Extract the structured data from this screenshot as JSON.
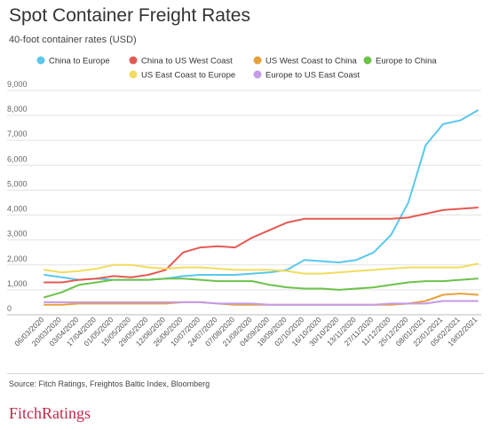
{
  "title": "Spot Container Freight Rates",
  "subtitle": "40-foot container rates (USD)",
  "source": "Source: Fitch Ratings, Freightos Baltic Index, Bloomberg",
  "brand": {
    "part1": "Fitch",
    "part2": "Ratings"
  },
  "colors": {
    "brand": "#c0294a"
  },
  "chart_data": {
    "type": "line",
    "title": "Spot Container Freight Rates",
    "ylabel": "40-foot container rates (USD)",
    "xlabel": "",
    "ylim": [
      0,
      9000
    ],
    "yticks": [
      0,
      1000,
      2000,
      3000,
      4000,
      5000,
      6000,
      7000,
      8000,
      9000
    ],
    "ytick_labels": [
      "0",
      "1,000",
      "2,000",
      "3,000",
      "4,000",
      "5,000",
      "6,000",
      "7,000",
      "8,000",
      "9,000"
    ],
    "grid": true,
    "legend_position": "top",
    "x": [
      "06/03/2020",
      "20/03/2020",
      "03/04/2020",
      "17/04/2020",
      "01/05/2020",
      "15/05/2020",
      "29/05/2020",
      "12/06/2020",
      "26/06/2020",
      "10/07/2020",
      "24/07/2020",
      "07/08/2020",
      "21/08/2020",
      "04/09/2020",
      "18/09/2020",
      "02/10/2020",
      "16/10/2020",
      "30/10/2020",
      "13/11/2020",
      "27/11/2020",
      "11/12/2020",
      "25/12/2020",
      "08/01/2021",
      "22/01/2021",
      "05/02/2021",
      "19/02/2021"
    ],
    "series": [
      {
        "name": "China to Europe",
        "color": "#5bc8ec",
        "values": [
          1600,
          1500,
          1400,
          1450,
          1400,
          1400,
          1400,
          1450,
          1550,
          1600,
          1600,
          1600,
          1650,
          1700,
          1800,
          2200,
          2150,
          2100,
          2200,
          2500,
          3200,
          4500,
          6800,
          7650,
          7800,
          8200
        ]
      },
      {
        "name": "China to US West Coast",
        "color": "#e45a52",
        "values": [
          1300,
          1300,
          1400,
          1450,
          1550,
          1500,
          1600,
          1800,
          2500,
          2700,
          2750,
          2700,
          3100,
          3400,
          3700,
          3850,
          3850,
          3850,
          3850,
          3850,
          3850,
          3900,
          4050,
          4200,
          4250,
          4300
        ]
      },
      {
        "name": "US West Coast to China",
        "color": "#e8a13a",
        "values": [
          400,
          400,
          450,
          450,
          450,
          450,
          450,
          450,
          500,
          500,
          450,
          400,
          400,
          400,
          400,
          400,
          400,
          400,
          400,
          400,
          400,
          450,
          550,
          800,
          850,
          800
        ]
      },
      {
        "name": "Europe to China",
        "color": "#6cc24a",
        "values": [
          700,
          900,
          1200,
          1300,
          1400,
          1400,
          1400,
          1450,
          1450,
          1400,
          1350,
          1350,
          1350,
          1200,
          1100,
          1050,
          1050,
          1000,
          1050,
          1100,
          1200,
          1300,
          1350,
          1350,
          1400,
          1450
        ]
      },
      {
        "name": "US East Coast to Europe",
        "color": "#f2dc5d",
        "values": [
          1800,
          1700,
          1750,
          1850,
          2000,
          2000,
          1900,
          1850,
          1900,
          1900,
          1850,
          1800,
          1800,
          1800,
          1750,
          1650,
          1650,
          1700,
          1750,
          1800,
          1850,
          1900,
          1900,
          1900,
          1900,
          2050
        ]
      },
      {
        "name": "Europe to US East Coast",
        "color": "#c39be8",
        "values": [
          500,
          500,
          500,
          500,
          500,
          500,
          500,
          500,
          500,
          500,
          450,
          450,
          450,
          400,
          400,
          400,
          400,
          400,
          400,
          400,
          450,
          450,
          450,
          550,
          550,
          550
        ]
      }
    ]
  }
}
